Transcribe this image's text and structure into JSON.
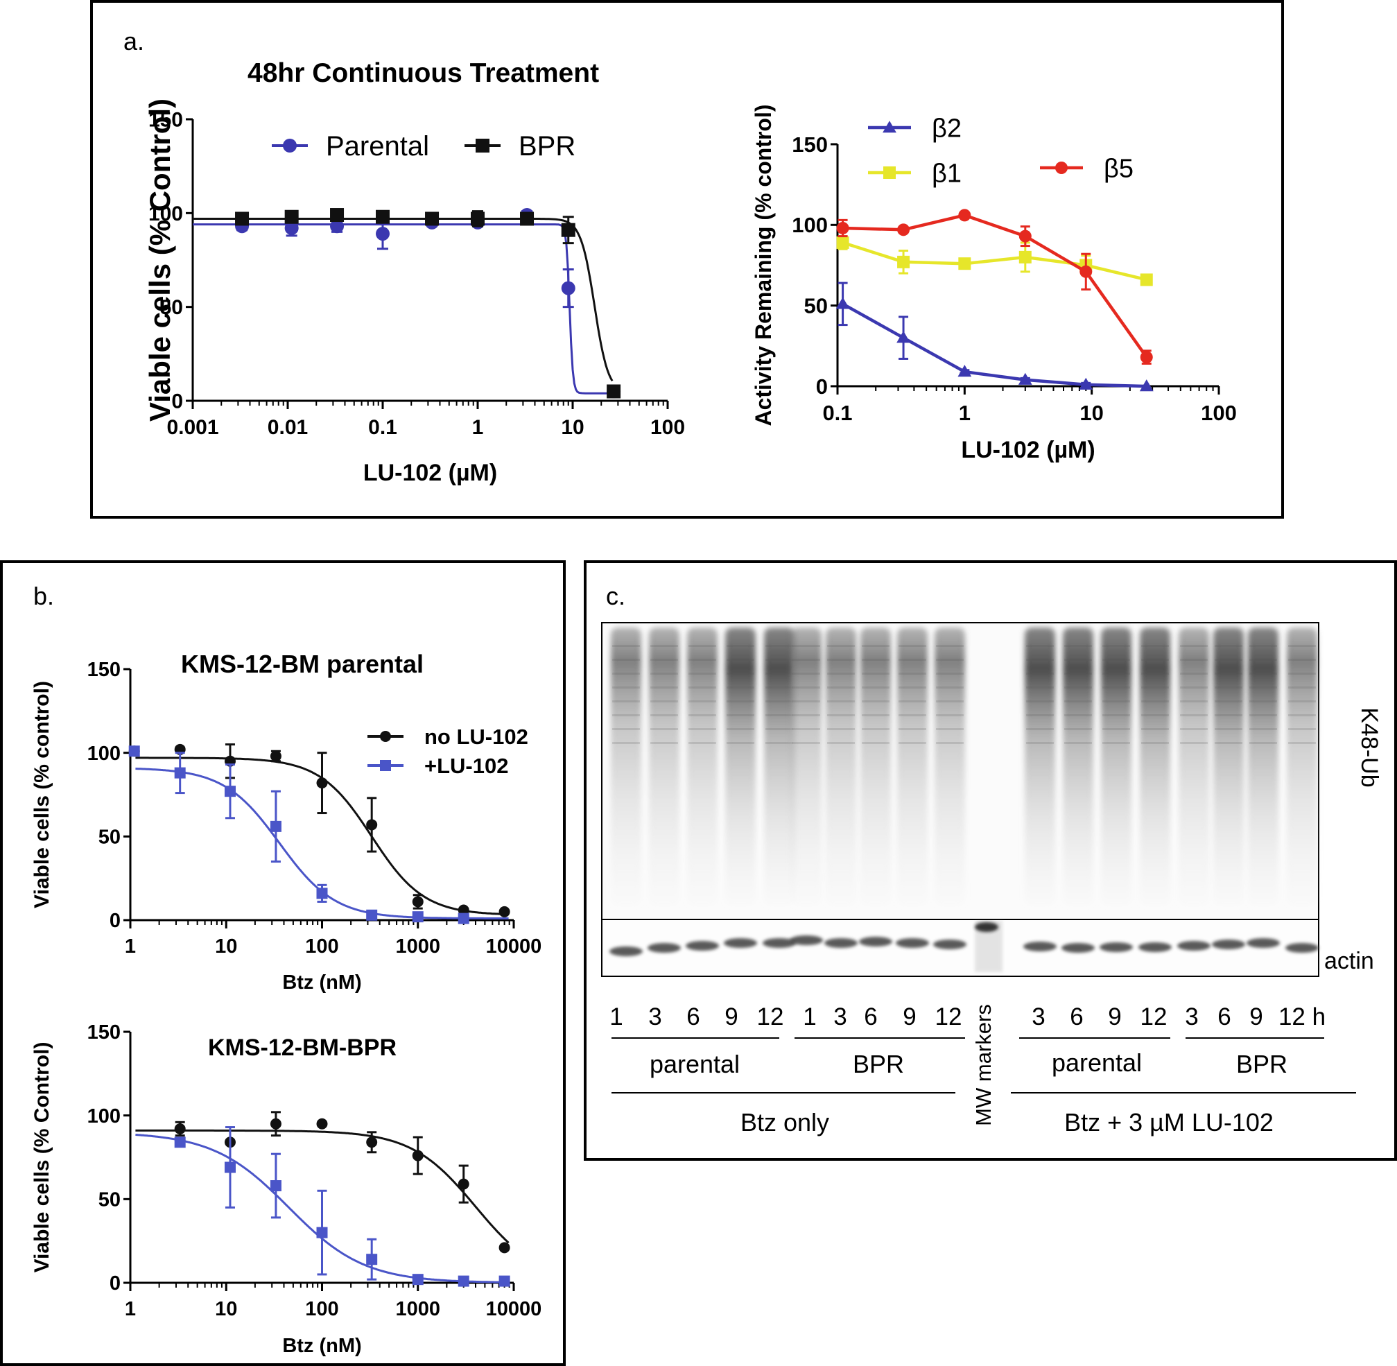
{
  "panel_a": {
    "letter": "a.",
    "title": "48hr Continuous Treatment",
    "colors": {
      "parental": "#3b38b0",
      "bpr": "#111111",
      "b2": "#3b38b0",
      "b1": "#e6e62a",
      "b5": "#e5291f"
    }
  },
  "panel_b": {
    "letter": "b."
  },
  "panel_c": {
    "letter": "c.",
    "k48_label": "K48-Ub",
    "actin_label": "actin",
    "lane_labels": [
      "1",
      "3",
      "6",
      "9",
      "12",
      "1",
      "3",
      "6",
      "9",
      "12",
      "3",
      "6",
      "9",
      "12",
      "3",
      "6",
      "9",
      "12 h"
    ],
    "group_labels": {
      "parental_1": "parental",
      "bpr_1": "BPR",
      "parental_2": "parental",
      "bpr_2": "BPR"
    },
    "treatment_labels": {
      "btz_only": "Btz only",
      "btz_lu": "Btz + 3 µM LU-102"
    },
    "mw_markers": "MW markers"
  },
  "chart_data": [
    {
      "id": "a-left",
      "type": "line",
      "title": "48hr Continuous Treatment",
      "xlabel": "LU-102 (µM)",
      "ylabel": "Viable cells (%  Control)",
      "xscale": "log",
      "xlim": [
        0.001,
        100
      ],
      "ylim": [
        0,
        150
      ],
      "xticks": [
        "0.001",
        "0.01",
        "0.1",
        "1",
        "10",
        "100"
      ],
      "yticks": [
        "0",
        "50",
        "100",
        "150"
      ],
      "legend": "top-left",
      "series": [
        {
          "name": "Parental",
          "color": "#3b38b0",
          "marker": "circle",
          "x": [
            0.0033,
            0.011,
            0.033,
            0.1,
            0.33,
            1,
            3.3,
            9,
            27
          ],
          "y": [
            93,
            92,
            93,
            89,
            95,
            95,
            99,
            60,
            5
          ],
          "err": [
            2,
            4,
            3,
            8,
            1,
            1,
            2,
            10,
            1
          ],
          "fit": {
            "top": 94,
            "bottom": 4,
            "ic50": 9.3,
            "hill": 25
          }
        },
        {
          "name": "BPR",
          "color": "#111111",
          "marker": "square",
          "x": [
            0.0033,
            0.011,
            0.033,
            0.1,
            0.33,
            1,
            3.3,
            9,
            27
          ],
          "y": [
            97,
            98,
            99,
            98,
            97,
            97,
            97,
            91,
            5
          ],
          "err": [
            1,
            1,
            3,
            2,
            2,
            4,
            3,
            7,
            2
          ],
          "fit": {
            "top": 97,
            "bottom": 4,
            "ic50": 17,
            "hill": 6
          }
        }
      ]
    },
    {
      "id": "a-right",
      "type": "line",
      "xlabel": "LU-102 (µM)",
      "ylabel": "Activity Remaining (%  control)",
      "xscale": "log",
      "xlim": [
        0.1,
        100
      ],
      "ylim": [
        0,
        150
      ],
      "xticks": [
        "0.1",
        "1",
        "10",
        "100"
      ],
      "yticks": [
        "0",
        "50",
        "100",
        "150"
      ],
      "legend": "top",
      "series": [
        {
          "name": "β2",
          "color": "#3b38b0",
          "marker": "triangle",
          "x": [
            0.11,
            0.33,
            1,
            3,
            9,
            27
          ],
          "y": [
            51,
            30,
            9,
            4,
            1,
            0
          ],
          "err": [
            13,
            13,
            1,
            1,
            1,
            0
          ]
        },
        {
          "name": "β1",
          "color": "#e6e62a",
          "marker": "square",
          "x": [
            0.11,
            0.33,
            1,
            3,
            9,
            27
          ],
          "y": [
            89,
            77,
            76,
            80,
            75,
            66
          ],
          "err": [
            4,
            7,
            3,
            9,
            6,
            2
          ]
        },
        {
          "name": "β5",
          "color": "#e5291f",
          "marker": "circle",
          "x": [
            0.11,
            0.33,
            1,
            3,
            9,
            27
          ],
          "y": [
            98,
            97,
            106,
            93,
            71,
            18
          ],
          "err": [
            5,
            1,
            1,
            6,
            11,
            4
          ]
        }
      ]
    },
    {
      "id": "b-top",
      "type": "line",
      "title": "KMS-12-BM parental",
      "xlabel": "Btz (nM)",
      "ylabel": "Viable cells (% control)",
      "xscale": "log",
      "xlim": [
        1,
        10000
      ],
      "ylim": [
        0,
        150
      ],
      "xticks": [
        "1",
        "10",
        "100",
        "1000",
        "10000"
      ],
      "yticks": [
        "0",
        "50",
        "100",
        "150"
      ],
      "legend": "top-right",
      "series": [
        {
          "name": "no LU-102",
          "color": "#111111",
          "marker": "circle",
          "x": [
            1.1,
            3.3,
            11,
            33,
            100,
            330,
            1000,
            3000,
            8000
          ],
          "y": [
            101,
            102,
            95,
            98,
            82,
            57,
            11,
            6,
            5
          ],
          "err": [
            1,
            1,
            10,
            3,
            18,
            16,
            4,
            1,
            1
          ],
          "fit": {
            "top": 97,
            "bottom": 3,
            "ic50": 330,
            "hill": 1.6
          }
        },
        {
          "name": "+LU-102",
          "color": "#4a55c8",
          "marker": "square",
          "x": [
            1.1,
            3.3,
            11,
            33,
            100,
            330,
            1000,
            3000
          ],
          "y": [
            101,
            88,
            77,
            56,
            16,
            3,
            2,
            1
          ],
          "err": [
            1,
            12,
            16,
            21,
            5,
            1,
            1,
            0
          ],
          "fit": {
            "top": 91,
            "bottom": 1,
            "ic50": 36,
            "hill": 1.5
          }
        }
      ]
    },
    {
      "id": "b-bottom",
      "type": "line",
      "title": "KMS-12-BM-BPR",
      "xlabel": "Btz (nM)",
      "ylabel": "Viable cells (% Control)",
      "xscale": "log",
      "xlim": [
        1,
        10000
      ],
      "ylim": [
        0,
        150
      ],
      "xticks": [
        "1",
        "10",
        "100",
        "1000",
        "10000"
      ],
      "yticks": [
        "0",
        "50",
        "100",
        "150"
      ],
      "series": [
        {
          "name": "no LU-102",
          "color": "#111111",
          "marker": "circle",
          "x": [
            3.3,
            11,
            33,
            100,
            330,
            1000,
            3000,
            8000
          ],
          "y": [
            92,
            84,
            95,
            95,
            84,
            76,
            59,
            21
          ],
          "err": [
            4,
            0,
            7,
            1,
            6,
            11,
            11,
            1
          ],
          "fit": {
            "top": 91,
            "bottom": 0,
            "ic50": 4000,
            "hill": 1.3
          }
        },
        {
          "name": "+LU-102",
          "color": "#4a55c8",
          "marker": "square",
          "x": [
            3.3,
            11,
            33,
            100,
            330,
            1000,
            3000,
            8000
          ],
          "y": [
            84,
            69,
            58,
            30,
            14,
            2,
            1,
            1
          ],
          "err": [
            0,
            24,
            19,
            25,
            12,
            1,
            1,
            0
          ],
          "fit": {
            "top": 90,
            "bottom": 0,
            "ic50": 45,
            "hill": 1.1
          }
        }
      ]
    }
  ]
}
